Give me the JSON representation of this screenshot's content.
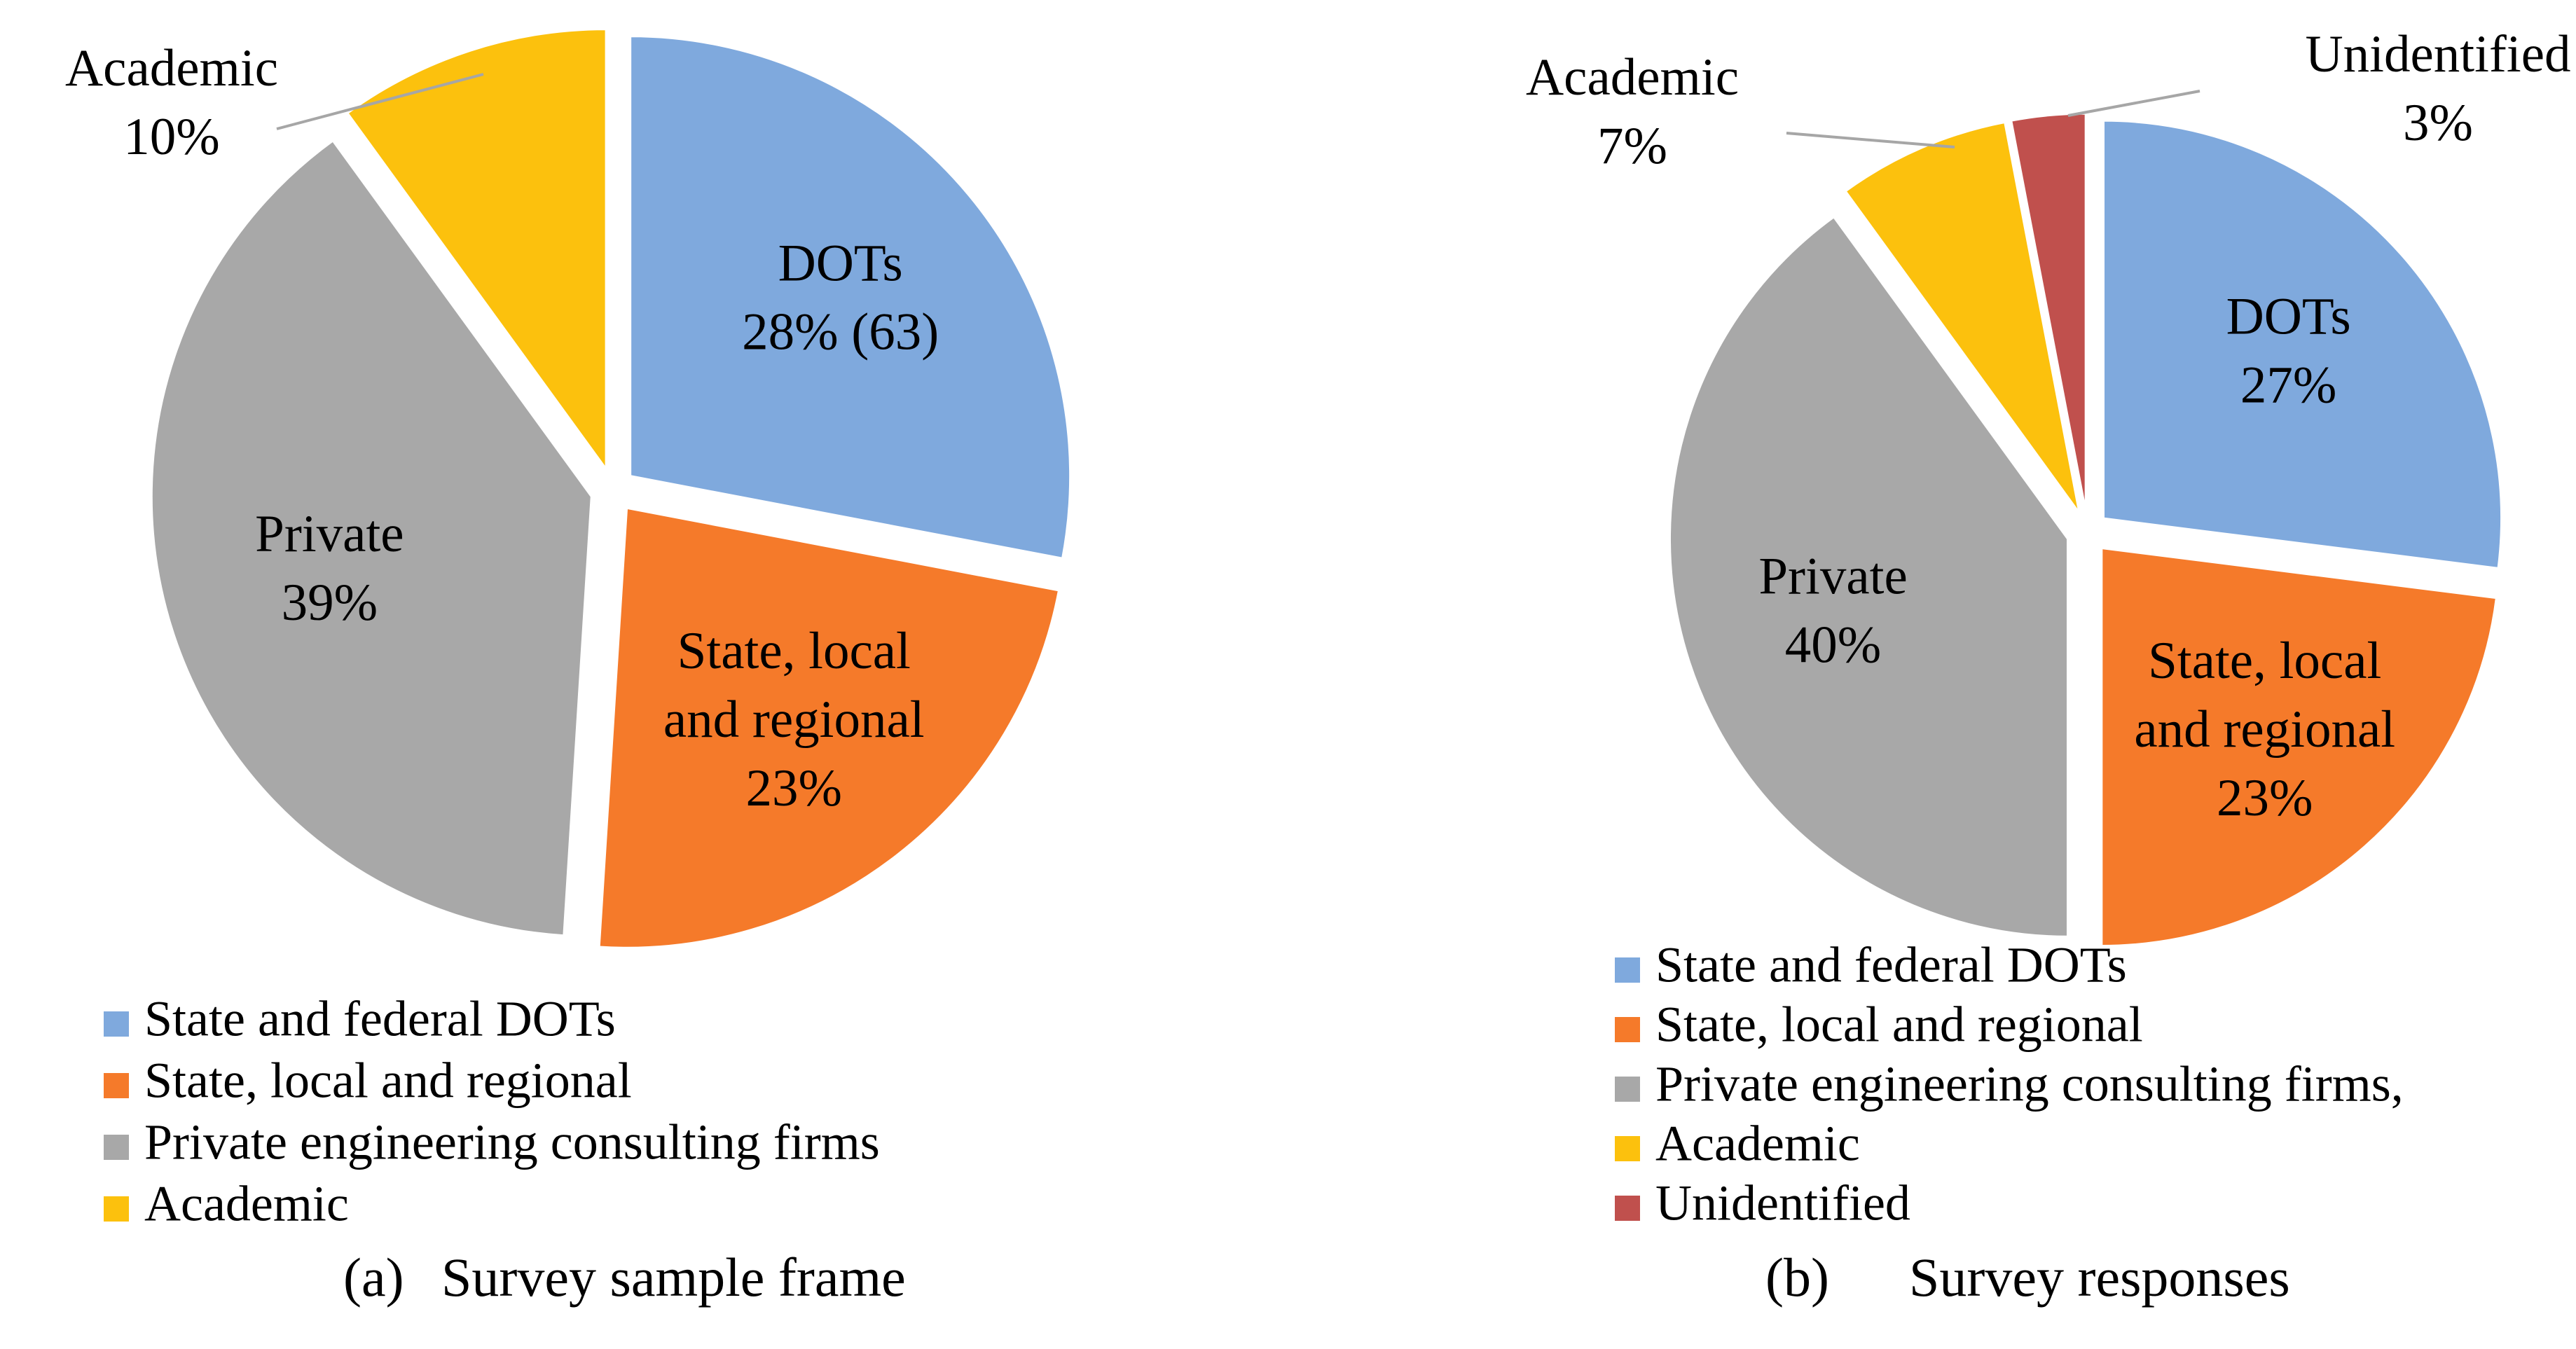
{
  "chart_data": [
    {
      "type": "pie",
      "caption_letter": "(a)",
      "caption_text": "Survey sample frame",
      "start_angle_deg": 0,
      "slices": [
        {
          "legend": "State and federal DOTs",
          "label_lines": [
            "DOTs",
            "28% (63)"
          ],
          "value": 28,
          "color": "#7fa9dd"
        },
        {
          "legend": "State, local and regional",
          "label_lines": [
            "State, local",
            "and regional",
            "23%"
          ],
          "value": 23,
          "color": "#f57a2a"
        },
        {
          "legend": "Private engineering consulting firms",
          "label_lines": [
            "Private",
            "39%"
          ],
          "value": 39,
          "color": "#a8a8a8"
        },
        {
          "legend": "Academic",
          "label_lines": [
            "Academic",
            "10%"
          ],
          "value": 10,
          "color": "#fcc10d",
          "outside_label": true
        }
      ]
    },
    {
      "type": "pie",
      "caption_letter": "(b)",
      "caption_text": "Survey responses",
      "start_angle_deg": 0,
      "slices": [
        {
          "legend": "State and federal DOTs",
          "label_lines": [
            "DOTs",
            "27%"
          ],
          "value": 27,
          "color": "#7fa9dd"
        },
        {
          "legend": "State, local and regional",
          "label_lines": [
            "State, local",
            "and regional",
            "23%"
          ],
          "value": 23,
          "color": "#f57a2a"
        },
        {
          "legend": "Private engineering consulting firms,",
          "label_lines": [
            "Private",
            "40%"
          ],
          "value": 40,
          "color": "#a8a8a8"
        },
        {
          "legend": "Academic",
          "label_lines": [
            "Academic",
            "7%"
          ],
          "value": 7,
          "color": "#fcc10d",
          "outside_label": true
        },
        {
          "legend": "Unidentified",
          "label_lines": [
            "Unidentified",
            "3%"
          ],
          "value": 3,
          "color": "#c0504d",
          "outside_label": true
        }
      ]
    }
  ]
}
